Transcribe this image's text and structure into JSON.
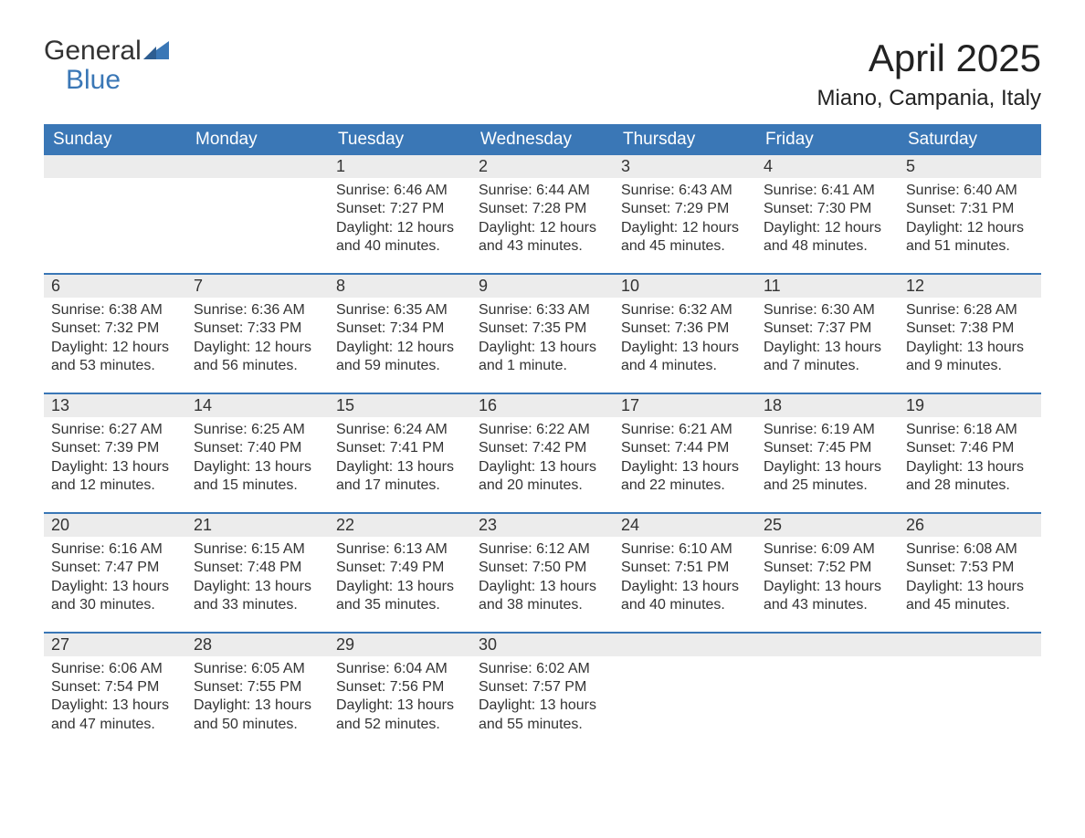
{
  "logo": {
    "word1": "General",
    "word2": "Blue"
  },
  "title": "April 2025",
  "location": "Miano, Campania, Italy",
  "styling": {
    "header_bg": "#3a77b6",
    "header_text_color": "#ffffff",
    "daynum_bg": "#ececec",
    "body_text_color": "#333333",
    "week_border_color": "#3a77b6",
    "page_bg": "#ffffff",
    "logo_color_top": "#333333",
    "logo_color_bottom": "#3a77b6",
    "title_fontsize": 42,
    "location_fontsize": 24,
    "header_fontsize": 19,
    "daynum_fontsize": 18,
    "body_fontsize": 16,
    "columns": 7
  },
  "day_headers": [
    "Sunday",
    "Monday",
    "Tuesday",
    "Wednesday",
    "Thursday",
    "Friday",
    "Saturday"
  ],
  "weeks": [
    [
      null,
      null,
      {
        "n": "1",
        "sunrise": "6:46 AM",
        "sunset": "7:27 PM",
        "daylight": "12 hours and 40 minutes."
      },
      {
        "n": "2",
        "sunrise": "6:44 AM",
        "sunset": "7:28 PM",
        "daylight": "12 hours and 43 minutes."
      },
      {
        "n": "3",
        "sunrise": "6:43 AM",
        "sunset": "7:29 PM",
        "daylight": "12 hours and 45 minutes."
      },
      {
        "n": "4",
        "sunrise": "6:41 AM",
        "sunset": "7:30 PM",
        "daylight": "12 hours and 48 minutes."
      },
      {
        "n": "5",
        "sunrise": "6:40 AM",
        "sunset": "7:31 PM",
        "daylight": "12 hours and 51 minutes."
      }
    ],
    [
      {
        "n": "6",
        "sunrise": "6:38 AM",
        "sunset": "7:32 PM",
        "daylight": "12 hours and 53 minutes."
      },
      {
        "n": "7",
        "sunrise": "6:36 AM",
        "sunset": "7:33 PM",
        "daylight": "12 hours and 56 minutes."
      },
      {
        "n": "8",
        "sunrise": "6:35 AM",
        "sunset": "7:34 PM",
        "daylight": "12 hours and 59 minutes."
      },
      {
        "n": "9",
        "sunrise": "6:33 AM",
        "sunset": "7:35 PM",
        "daylight": "13 hours and 1 minute."
      },
      {
        "n": "10",
        "sunrise": "6:32 AM",
        "sunset": "7:36 PM",
        "daylight": "13 hours and 4 minutes."
      },
      {
        "n": "11",
        "sunrise": "6:30 AM",
        "sunset": "7:37 PM",
        "daylight": "13 hours and 7 minutes."
      },
      {
        "n": "12",
        "sunrise": "6:28 AM",
        "sunset": "7:38 PM",
        "daylight": "13 hours and 9 minutes."
      }
    ],
    [
      {
        "n": "13",
        "sunrise": "6:27 AM",
        "sunset": "7:39 PM",
        "daylight": "13 hours and 12 minutes."
      },
      {
        "n": "14",
        "sunrise": "6:25 AM",
        "sunset": "7:40 PM",
        "daylight": "13 hours and 15 minutes."
      },
      {
        "n": "15",
        "sunrise": "6:24 AM",
        "sunset": "7:41 PM",
        "daylight": "13 hours and 17 minutes."
      },
      {
        "n": "16",
        "sunrise": "6:22 AM",
        "sunset": "7:42 PM",
        "daylight": "13 hours and 20 minutes."
      },
      {
        "n": "17",
        "sunrise": "6:21 AM",
        "sunset": "7:44 PM",
        "daylight": "13 hours and 22 minutes."
      },
      {
        "n": "18",
        "sunrise": "6:19 AM",
        "sunset": "7:45 PM",
        "daylight": "13 hours and 25 minutes."
      },
      {
        "n": "19",
        "sunrise": "6:18 AM",
        "sunset": "7:46 PM",
        "daylight": "13 hours and 28 minutes."
      }
    ],
    [
      {
        "n": "20",
        "sunrise": "6:16 AM",
        "sunset": "7:47 PM",
        "daylight": "13 hours and 30 minutes."
      },
      {
        "n": "21",
        "sunrise": "6:15 AM",
        "sunset": "7:48 PM",
        "daylight": "13 hours and 33 minutes."
      },
      {
        "n": "22",
        "sunrise": "6:13 AM",
        "sunset": "7:49 PM",
        "daylight": "13 hours and 35 minutes."
      },
      {
        "n": "23",
        "sunrise": "6:12 AM",
        "sunset": "7:50 PM",
        "daylight": "13 hours and 38 minutes."
      },
      {
        "n": "24",
        "sunrise": "6:10 AM",
        "sunset": "7:51 PM",
        "daylight": "13 hours and 40 minutes."
      },
      {
        "n": "25",
        "sunrise": "6:09 AM",
        "sunset": "7:52 PM",
        "daylight": "13 hours and 43 minutes."
      },
      {
        "n": "26",
        "sunrise": "6:08 AM",
        "sunset": "7:53 PM",
        "daylight": "13 hours and 45 minutes."
      }
    ],
    [
      {
        "n": "27",
        "sunrise": "6:06 AM",
        "sunset": "7:54 PM",
        "daylight": "13 hours and 47 minutes."
      },
      {
        "n": "28",
        "sunrise": "6:05 AM",
        "sunset": "7:55 PM",
        "daylight": "13 hours and 50 minutes."
      },
      {
        "n": "29",
        "sunrise": "6:04 AM",
        "sunset": "7:56 PM",
        "daylight": "13 hours and 52 minutes."
      },
      {
        "n": "30",
        "sunrise": "6:02 AM",
        "sunset": "7:57 PM",
        "daylight": "13 hours and 55 minutes."
      },
      null,
      null,
      null
    ]
  ],
  "labels": {
    "sunrise_prefix": "Sunrise: ",
    "sunset_prefix": "Sunset: ",
    "daylight_prefix": "Daylight: "
  }
}
